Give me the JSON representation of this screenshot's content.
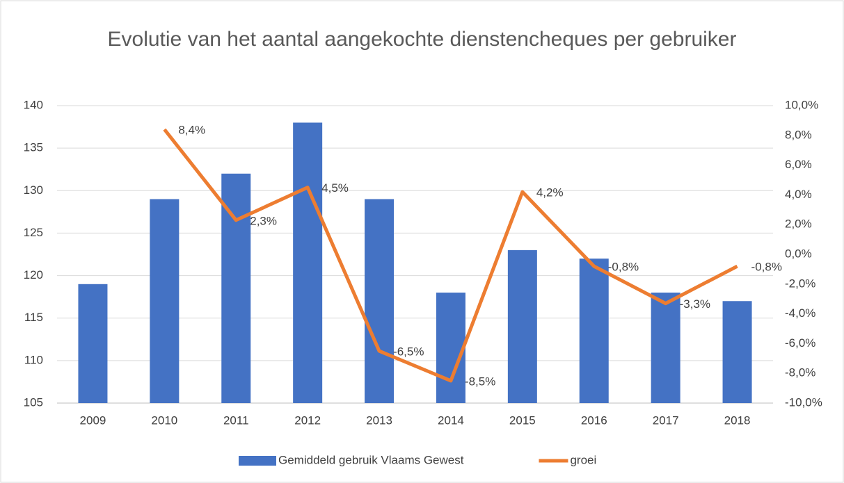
{
  "chart_data": {
    "type": "bar",
    "title": "Evolutie van het aantal aangekochte dienstencheques per gebruiker",
    "categories": [
      "2009",
      "2010",
      "2011",
      "2012",
      "2013",
      "2014",
      "2015",
      "2016",
      "2017",
      "2018"
    ],
    "series": [
      {
        "name": "Gemiddeld gebruik Vlaams Gewest",
        "type": "bar",
        "color": "#4472c4",
        "values": [
          119,
          129,
          132,
          138,
          129,
          118,
          123,
          122,
          118,
          117
        ]
      },
      {
        "name": "groei",
        "type": "line",
        "axis": "y2",
        "color": "#ed7d31",
        "values": [
          null,
          8.4,
          2.3,
          4.5,
          -6.5,
          -8.5,
          4.2,
          -0.8,
          -3.3,
          -0.8
        ],
        "value_labels": [
          null,
          "8,4%",
          "2,3%",
          "4,5%",
          "-6,5%",
          "-8,5%",
          "4,2%",
          "-0,8%",
          "-3,3%",
          "-0,8%"
        ]
      }
    ],
    "ylim": [
      105,
      140
    ],
    "yticks": [
      105,
      110,
      115,
      120,
      125,
      130,
      135,
      140
    ],
    "y2lim": [
      -10,
      10
    ],
    "y2ticks": [
      {
        "value": -10,
        "label": "-10,0%"
      },
      {
        "value": -8,
        "label": "-8,0%"
      },
      {
        "value": -6,
        "label": "-6,0%"
      },
      {
        "value": -4,
        "label": "-4,0%"
      },
      {
        "value": -2,
        "label": "-2,0%"
      },
      {
        "value": 0,
        "label": "0,0%"
      },
      {
        "value": 2,
        "label": "2,0%"
      },
      {
        "value": 4,
        "label": "4,0%"
      },
      {
        "value": 6,
        "label": "6,0%"
      },
      {
        "value": 8,
        "label": "8,0%"
      },
      {
        "value": 10,
        "label": "10,0%"
      }
    ],
    "grid": true,
    "legend": "bottom"
  }
}
